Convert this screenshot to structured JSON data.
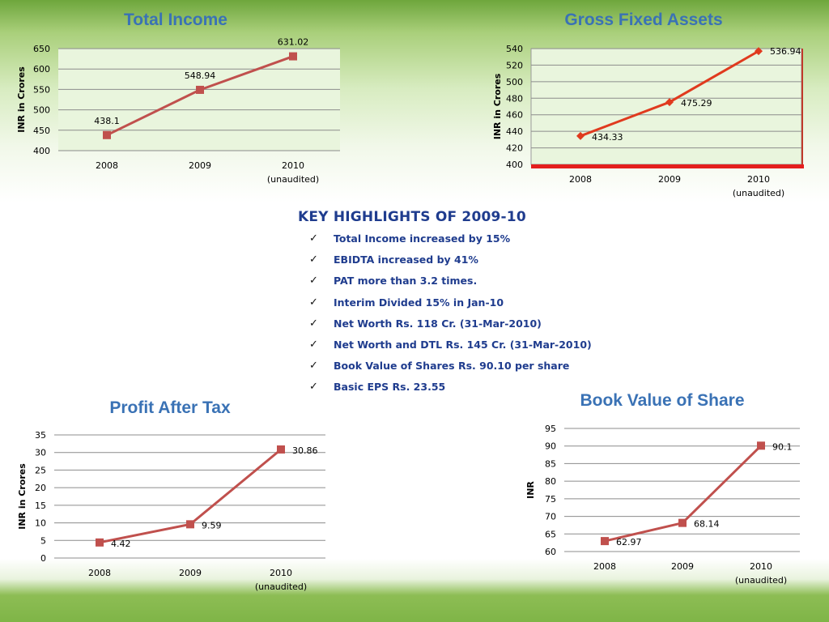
{
  "highlights": {
    "heading": "KEY HIGHLIGHTS OF 2009-10",
    "items": [
      "Total Income increased by 15%",
      "EBIDTA increased by 41%",
      "PAT more than 3.2 times.",
      "Interim Divided 15% in Jan-10",
      "Net Worth Rs. 118 Cr.  (31-Mar-2010)",
      "Net Worth and DTL Rs. 145 Cr. (31-Mar-2010)",
      "Book Value of Shares Rs. 90.10 per share",
      "Basic EPS Rs. 23.55"
    ]
  },
  "chart_data": [
    {
      "type": "line",
      "title": "Total Income",
      "ylabel": "INR  in Crores",
      "categories": [
        "2008",
        "2009",
        "2010"
      ],
      "category_sublabels": [
        "",
        "",
        "(unaudited)"
      ],
      "values": [
        438.1,
        548.94,
        631.02
      ],
      "data_labels": [
        "438.1",
        "548.94",
        "631.02"
      ],
      "ylim": [
        400,
        650
      ],
      "yticks": [
        400,
        450,
        500,
        550,
        600,
        650
      ],
      "marker": "square",
      "line_color": "#c0504d",
      "plot_background": "#e9f5dd",
      "grid": true
    },
    {
      "type": "line",
      "title": "Gross Fixed Assets",
      "ylabel": "INR  in Crores",
      "categories": [
        "2008",
        "2009",
        "2010"
      ],
      "category_sublabels": [
        "",
        "",
        "(unaudited)"
      ],
      "values": [
        434.33,
        475.29,
        536.94
      ],
      "data_labels": [
        "434.33",
        "475.29",
        "536.94"
      ],
      "ylim": [
        400,
        540
      ],
      "yticks": [
        400,
        420,
        440,
        460,
        480,
        500,
        520,
        540
      ],
      "marker": "diamond",
      "line_color": "#e03a1e",
      "plot_background": "#e9f5dd",
      "grid": true
    },
    {
      "type": "line",
      "title": "Profit After Tax",
      "ylabel": "INR  in Crores",
      "categories": [
        "2008",
        "2009",
        "2010"
      ],
      "category_sublabels": [
        "",
        "",
        "(unaudited)"
      ],
      "values": [
        4.42,
        9.59,
        30.86
      ],
      "data_labels": [
        "4.42",
        "9.59",
        "30.86"
      ],
      "ylim": [
        0,
        35
      ],
      "yticks": [
        0,
        5,
        10,
        15,
        20,
        25,
        30,
        35
      ],
      "marker": "square",
      "line_color": "#c0504d",
      "plot_background": "#ffffff",
      "grid": true
    },
    {
      "type": "line",
      "title": "Book Value of Share",
      "ylabel": "INR",
      "categories": [
        "2008",
        "2009",
        "2010"
      ],
      "category_sublabels": [
        "",
        "",
        "(unaudited)"
      ],
      "values": [
        62.97,
        68.14,
        90.1
      ],
      "data_labels": [
        "62.97",
        "68.14",
        "90.1"
      ],
      "ylim": [
        60,
        95
      ],
      "yticks": [
        60,
        65,
        70,
        75,
        80,
        85,
        90,
        95
      ],
      "marker": "square",
      "line_color": "#c0504d",
      "plot_background": "#ffffff",
      "grid": true
    }
  ]
}
